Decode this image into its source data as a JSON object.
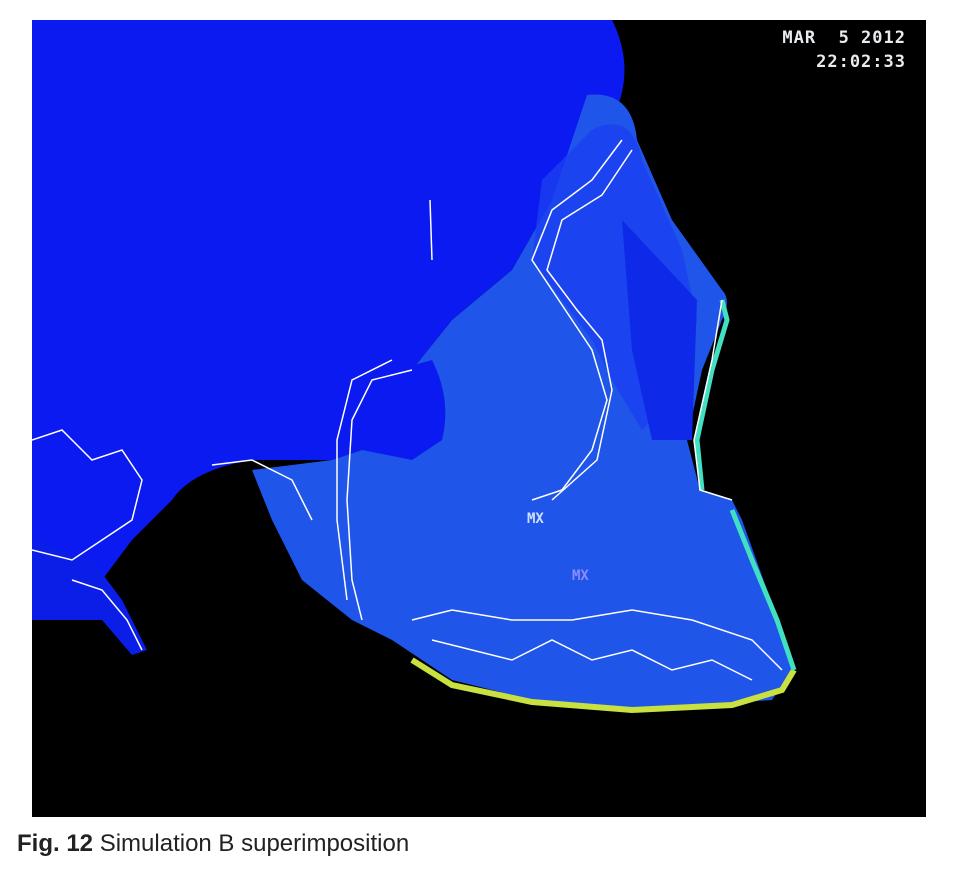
{
  "figure": {
    "timestamp_date": "MAR  5 2012",
    "timestamp_time": "22:02:33",
    "labels": [
      "MX",
      "MX"
    ],
    "colors": {
      "background": "#000000",
      "skull_dark": "#0a1af0",
      "skull_light": "#1f55e8",
      "edge_cyan": "#40e0c0",
      "edge_yellow": "#c8e040",
      "outline": "#ffffff"
    }
  },
  "caption": {
    "label": "Fig. 12",
    "text": "Simulation B superimposition"
  }
}
